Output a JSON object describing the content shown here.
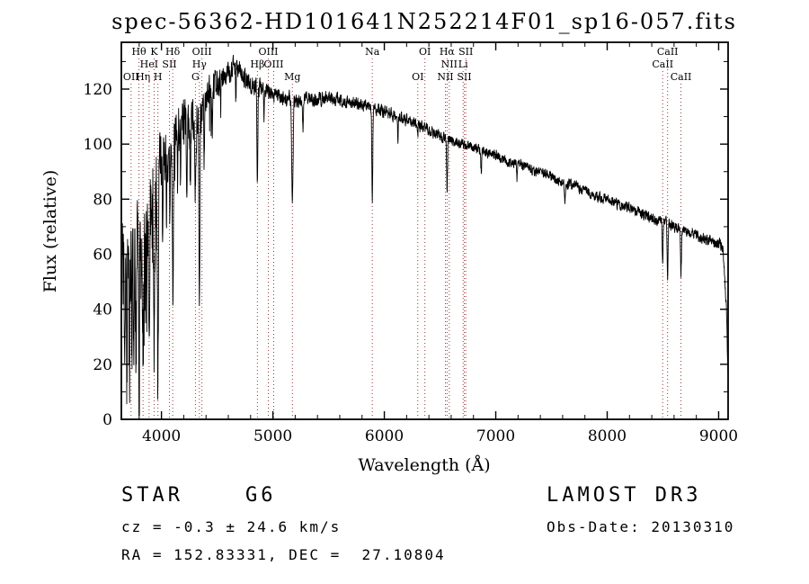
{
  "chart_data": {
    "type": "line",
    "title": "spec-56362-HD101641N252214F01_sp16-057.fits",
    "xlabel": "Wavelength (Å)",
    "ylabel": "Flux (relative)",
    "xlim": [
      3640,
      9085
    ],
    "ylim": [
      0,
      137
    ],
    "x_major_ticks": [
      4000,
      5000,
      6000,
      7000,
      8000,
      9000
    ],
    "x_minor_step": 200,
    "y_major_ticks": [
      0,
      20,
      40,
      60,
      80,
      100,
      120
    ],
    "y_minor_step": 10,
    "grid": false,
    "legend": "none",
    "line_color": "#000000",
    "marker_color": "#993333",
    "noise_seed": 12345,
    "sample_step": 2,
    "continuum_points": [
      [
        3650,
        55
      ],
      [
        3700,
        60
      ],
      [
        3750,
        63
      ],
      [
        3800,
        66
      ],
      [
        3850,
        70
      ],
      [
        3900,
        74
      ],
      [
        3950,
        82
      ],
      [
        4000,
        92
      ],
      [
        4050,
        98
      ],
      [
        4100,
        100
      ],
      [
        4150,
        106
      ],
      [
        4200,
        108
      ],
      [
        4250,
        107
      ],
      [
        4300,
        110
      ],
      [
        4350,
        113
      ],
      [
        4400,
        117
      ],
      [
        4450,
        120
      ],
      [
        4500,
        122
      ],
      [
        4550,
        124
      ],
      [
        4600,
        126
      ],
      [
        4650,
        128
      ],
      [
        4700,
        127
      ],
      [
        4750,
        124
      ],
      [
        4800,
        122
      ],
      [
        4850,
        121
      ],
      [
        4900,
        120
      ],
      [
        4950,
        119
      ],
      [
        5000,
        118
      ],
      [
        5100,
        117
      ],
      [
        5200,
        116
      ],
      [
        5300,
        117
      ],
      [
        5400,
        116
      ],
      [
        5500,
        117
      ],
      [
        5600,
        116
      ],
      [
        5700,
        115
      ],
      [
        5800,
        114
      ],
      [
        5900,
        113
      ],
      [
        6000,
        112
      ],
      [
        6100,
        110
      ],
      [
        6200,
        109
      ],
      [
        6300,
        107
      ],
      [
        6400,
        105
      ],
      [
        6500,
        103
      ],
      [
        6600,
        101
      ],
      [
        6700,
        100
      ],
      [
        6800,
        99
      ],
      [
        6900,
        97
      ],
      [
        7000,
        96
      ],
      [
        7100,
        94
      ],
      [
        7200,
        93
      ],
      [
        7300,
        91
      ],
      [
        7400,
        90
      ],
      [
        7500,
        88
      ],
      [
        7600,
        86
      ],
      [
        7700,
        85
      ],
      [
        7800,
        83
      ],
      [
        7900,
        81
      ],
      [
        8000,
        80
      ],
      [
        8100,
        78
      ],
      [
        8200,
        77
      ],
      [
        8300,
        75
      ],
      [
        8400,
        73
      ],
      [
        8500,
        72
      ],
      [
        8600,
        70
      ],
      [
        8700,
        68
      ],
      [
        8800,
        67
      ],
      [
        8900,
        65
      ],
      [
        9000,
        64
      ],
      [
        9040,
        62
      ],
      [
        9070,
        40
      ],
      [
        9085,
        15
      ]
    ],
    "absorption_features": [
      [
        3670,
        4,
        45
      ],
      [
        3691,
        3,
        35
      ],
      [
        3712,
        4,
        50
      ],
      [
        3734,
        3,
        40
      ],
      [
        3750,
        4,
        30
      ],
      [
        3771,
        3,
        48
      ],
      [
        3798,
        4,
        55
      ],
      [
        3820,
        3,
        30
      ],
      [
        3835,
        4,
        52
      ],
      [
        3860,
        3,
        28
      ],
      [
        3889,
        4,
        55
      ],
      [
        3912,
        3,
        25
      ],
      [
        3934,
        5,
        65
      ],
      [
        3968,
        5,
        60
      ],
      [
        4010,
        3,
        20
      ],
      [
        4045,
        3,
        25
      ],
      [
        4077,
        3,
        28
      ],
      [
        4101,
        5,
        55
      ],
      [
        4144,
        3,
        22
      ],
      [
        4172,
        3,
        25
      ],
      [
        4227,
        3,
        30
      ],
      [
        4260,
        3,
        22
      ],
      [
        4305,
        6,
        28
      ],
      [
        4340,
        4,
        75
      ],
      [
        4383,
        3,
        25
      ],
      [
        4455,
        3,
        15
      ],
      [
        4531,
        3,
        12
      ],
      [
        4668,
        3,
        12
      ],
      [
        4861,
        4,
        35
      ],
      [
        4920,
        3,
        10
      ],
      [
        5175,
        6,
        38
      ],
      [
        5270,
        4,
        12
      ],
      [
        5892,
        4,
        35
      ],
      [
        6122,
        3,
        8
      ],
      [
        6300,
        2,
        6
      ],
      [
        6563,
        4,
        18
      ],
      [
        6870,
        4,
        8
      ],
      [
        7190,
        3,
        6
      ],
      [
        7620,
        4,
        8
      ],
      [
        8498,
        4,
        14
      ],
      [
        8542,
        4,
        20
      ],
      [
        8662,
        4,
        16
      ]
    ],
    "noise_profile": [
      [
        3650,
        26
      ],
      [
        3900,
        24
      ],
      [
        4050,
        16
      ],
      [
        4200,
        12
      ],
      [
        4400,
        8
      ],
      [
        4600,
        6
      ],
      [
        4900,
        4
      ],
      [
        5200,
        3.5
      ],
      [
        6000,
        3
      ],
      [
        7000,
        2.5
      ],
      [
        8000,
        2.5
      ],
      [
        9085,
        3
      ]
    ],
    "spectral_lines": [
      {
        "label": "OII",
        "wavelength": 3727,
        "row": 3
      },
      {
        "label": "Hθ",
        "wavelength": 3798,
        "row": 1
      },
      {
        "label": "Hη",
        "wavelength": 3835,
        "row": 3
      },
      {
        "label": "HeI",
        "wavelength": 3889,
        "row": 2
      },
      {
        "label": "K",
        "wavelength": 3934,
        "row": 1
      },
      {
        "label": "H",
        "wavelength": 3968,
        "row": 3
      },
      {
        "label": "SII",
        "wavelength": 4072,
        "row": 2
      },
      {
        "label": "Hδ",
        "wavelength": 4101,
        "row": 1
      },
      {
        "label": "G",
        "wavelength": 4305,
        "row": 3
      },
      {
        "label": "Hγ",
        "wavelength": 4340,
        "row": 2
      },
      {
        "label": "OIII",
        "wavelength": 4363,
        "row": 1
      },
      {
        "label": "Hβ",
        "wavelength": 4861,
        "row": 2
      },
      {
        "label": "OIII",
        "wavelength": 4959,
        "row": 1
      },
      {
        "label": "OIII",
        "wavelength": 5007,
        "row": 2
      },
      {
        "label": "Mg",
        "wavelength": 5175,
        "row": 3
      },
      {
        "label": "Na",
        "wavelength": 5892,
        "row": 1
      },
      {
        "label": "OI",
        "wavelength": 6300,
        "row": 3
      },
      {
        "label": "OI",
        "wavelength": 6364,
        "row": 1
      },
      {
        "label": "NII",
        "wavelength": 6548,
        "row": 3
      },
      {
        "label": "Hα",
        "wavelength": 6563,
        "row": 1
      },
      {
        "label": "NII",
        "wavelength": 6583,
        "row": 2
      },
      {
        "label": "Li",
        "wavelength": 6707,
        "row": 2
      },
      {
        "label": "SII",
        "wavelength": 6717,
        "row": 3
      },
      {
        "label": "SII",
        "wavelength": 6731,
        "row": 1
      },
      {
        "label": "CaII",
        "wavelength": 8498,
        "row": 2
      },
      {
        "label": "CaII",
        "wavelength": 8542,
        "row": 1
      },
      {
        "label": "CaII",
        "wavelength": 8662,
        "row": 3
      }
    ]
  },
  "footer": {
    "class_line": "STAR    G6",
    "survey": "LAMOST DR3",
    "cz": "cz = -0.3 ± 24.6 km/s",
    "obs_date": "Obs-Date: 20130310",
    "radec": "RA = 152.83331, DEC =  27.10804"
  }
}
